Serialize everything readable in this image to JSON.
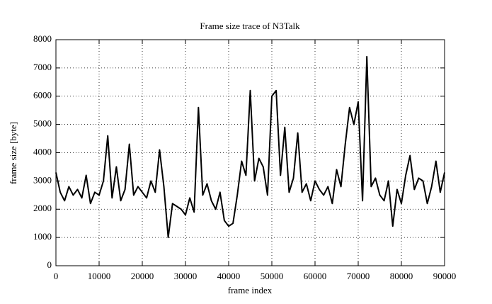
{
  "chart_data": {
    "type": "line",
    "title": "Frame size trace of N3Talk",
    "x_label": "frame index",
    "y_label": "frame size [byte]",
    "x": [
      0,
      1000,
      2000,
      3000,
      4000,
      5000,
      6000,
      7000,
      8000,
      9000,
      10000,
      11000,
      12000,
      13000,
      14000,
      15000,
      16000,
      17000,
      18000,
      19000,
      20000,
      21000,
      22000,
      23000,
      24000,
      25000,
      26000,
      27000,
      28000,
      29000,
      30000,
      31000,
      32000,
      33000,
      34000,
      35000,
      36000,
      37000,
      38000,
      39000,
      40000,
      41000,
      42000,
      43000,
      44000,
      45000,
      46000,
      47000,
      48000,
      49000,
      50000,
      51000,
      52000,
      53000,
      54000,
      55000,
      56000,
      57000,
      58000,
      59000,
      60000,
      61000,
      62000,
      63000,
      64000,
      65000,
      66000,
      67000,
      68000,
      69000,
      70000,
      71000,
      72000,
      73000,
      74000,
      75000,
      76000,
      77000,
      78000,
      79000,
      80000,
      81000,
      82000,
      83000,
      84000,
      85000,
      86000,
      87000,
      88000,
      89000,
      90000
    ],
    "series": [
      {
        "name": "frame size",
        "color": "#000000",
        "values": [
          3300,
          2600,
          2300,
          2800,
          2500,
          2700,
          2400,
          3200,
          2200,
          2600,
          2500,
          3000,
          4600,
          2400,
          3500,
          2300,
          2700,
          4300,
          2500,
          2800,
          2600,
          2400,
          3000,
          2600,
          4100,
          2800,
          1000,
          2200,
          2100,
          2000,
          1800,
          2400,
          1900,
          5600,
          2500,
          2900,
          2300,
          2000,
          2600,
          1600,
          1400,
          1500,
          2500,
          3700,
          3200,
          6200,
          3000,
          3800,
          3500,
          2500,
          6000,
          6200,
          3200,
          4900,
          2600,
          3100,
          4700,
          2600,
          2900,
          2300,
          3000,
          2700,
          2500,
          2800,
          2200,
          3400,
          2800,
          4300,
          5600,
          5000,
          5800,
          2300,
          7400,
          2800,
          3100,
          2500,
          2300,
          3000,
          1400,
          2700,
          2200,
          3200,
          3900,
          2700,
          3100,
          3000,
          2200,
          2800,
          3700,
          2600,
          3300
        ]
      }
    ],
    "xlim": [
      0,
      90000
    ],
    "ylim": [
      0,
      8000
    ],
    "xticks": [
      0,
      10000,
      20000,
      30000,
      40000,
      50000,
      60000,
      70000,
      80000,
      90000
    ],
    "yticks": [
      0,
      1000,
      2000,
      3000,
      4000,
      5000,
      6000,
      7000,
      8000
    ],
    "grid": true
  }
}
